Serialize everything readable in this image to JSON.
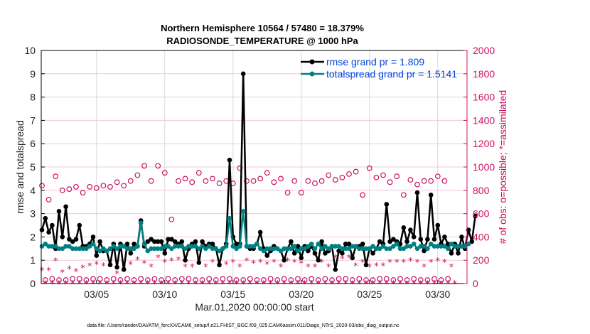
{
  "chart_data": {
    "type": "line",
    "title": "Northern Hemisphere 10564 / 57480 = 18.379%",
    "subtitle": "RADIOSONDE_TEMPERATURE @ 1000 hPa",
    "xlabel": "Mar.01,2020 00:00:00 start",
    "ylabel": "rmse and totalspread",
    "y2label": "# of obs: o=possible; *=assimilated",
    "footnote": "data file: /Users/raeder/DAI/ATM_forcXX/CAM6_setup/f.e21.FHIST_BGC.f09_025.CAM6assim.011/Diags_NTrS_2020-03/obs_diag_output.nc",
    "x_unit": "days since Mar.01,2020 00:00:00",
    "x_step_days": 0.25,
    "xlim": [
      0,
      31
    ],
    "ylim": [
      0,
      10
    ],
    "y2lim": [
      0,
      2000
    ],
    "xticks": [
      {
        "value": 4,
        "label": "03/05"
      },
      {
        "value": 9,
        "label": "03/10"
      },
      {
        "value": 14,
        "label": "03/15"
      },
      {
        "value": 19,
        "label": "03/20"
      },
      {
        "value": 24,
        "label": "03/25"
      },
      {
        "value": 29,
        "label": "03/30"
      }
    ],
    "yticks": [
      "0",
      "1",
      "2",
      "3",
      "4",
      "5",
      "6",
      "7",
      "8",
      "9",
      "10"
    ],
    "y2ticks": [
      "0",
      "200",
      "400",
      "600",
      "800",
      "1000",
      "1200",
      "1400",
      "1600",
      "1800",
      "2000"
    ],
    "grid": true,
    "legend_position": "top-right",
    "colors": {
      "rmse": "#000000",
      "totalspread": "#008080",
      "obs": "#cc1060",
      "grid_h": "#f2c8d8",
      "grid_v": "#d9d9d9",
      "legend_text": "#0044dd"
    },
    "series": [
      {
        "name": "rmse grand pr = 1.809",
        "axis": "left",
        "values": [
          2.3,
          2.8,
          2.2,
          2.5,
          1.5,
          3.1,
          2.0,
          3.3,
          1.9,
          1.8,
          1.9,
          2.5,
          1.6,
          1.6,
          1.7,
          2.0,
          1.2,
          1.8,
          1.4,
          1.4,
          0.8,
          1.7,
          0.7,
          1.7,
          0.6,
          1.7,
          1.3,
          1.7,
          1.6,
          2.7,
          1.6,
          1.8,
          1.9,
          1.8,
          1.8,
          1.8,
          1.3,
          1.9,
          1.9,
          1.8,
          1.7,
          1.8,
          1.0,
          1.5,
          1.7,
          1.8,
          0.9,
          1.8,
          1.6,
          1.7,
          1.7,
          1.5,
          0.8,
          1.5,
          1.7,
          5.3,
          2.0,
          1.7,
          1.7,
          9.0,
          1.6,
          1.5,
          1.5,
          1.7,
          2.2,
          1.5,
          1.2,
          1.4,
          1.6,
          1.5,
          1.4,
          1.0,
          1.5,
          1.8,
          1.3,
          1.6,
          1.1,
          1.6,
          1.4,
          1.6,
          1.3,
          1.0,
          1.8,
          1.3,
          1.4,
          1.6,
          0.6,
          1.4,
          1.3,
          1.7,
          1.7,
          1.1,
          1.6,
          1.6,
          1.7,
          0.8,
          1.5,
          1.3,
          1.5,
          1.8,
          1.7,
          3.4,
          1.8,
          1.9,
          1.8,
          1.7,
          2.4,
          1.8,
          2.3,
          2.0,
          3.9,
          1.9,
          1.4,
          1.9,
          3.8,
          1.9,
          2.5,
          1.7,
          2.0,
          1.7,
          1.3,
          1.7,
          1.3,
          2.0,
          1.5,
          2.3,
          1.8,
          2.9
        ],
        "gaps_note": "approximate 6-hourly readings"
      },
      {
        "name": "totalspread grand pr = 1.5141",
        "axis": "left",
        "values": [
          1.6,
          1.7,
          1.6,
          1.6,
          1.6,
          1.5,
          1.5,
          1.6,
          1.6,
          1.5,
          1.5,
          1.5,
          1.5,
          1.5,
          1.6,
          1.7,
          1.5,
          1.4,
          1.5,
          1.4,
          1.5,
          1.6,
          1.5,
          1.6,
          1.6,
          1.5,
          1.5,
          1.5,
          1.6,
          2.6,
          1.7,
          1.4,
          1.5,
          1.5,
          1.5,
          1.5,
          1.6,
          1.6,
          1.5,
          1.6,
          1.6,
          1.6,
          1.5,
          1.6,
          1.6,
          1.6,
          1.5,
          1.6,
          1.5,
          1.6,
          1.5,
          1.5,
          1.4,
          1.5,
          1.6,
          2.8,
          1.6,
          1.5,
          1.6,
          3.1,
          1.6,
          1.6,
          1.6,
          1.7,
          1.5,
          1.4,
          1.5,
          1.5,
          1.5,
          1.5,
          1.4,
          1.5,
          1.5,
          1.5,
          1.6,
          1.4,
          1.5,
          1.5,
          1.6,
          1.7,
          1.5,
          1.7,
          1.5,
          1.6,
          1.5,
          1.6,
          1.6,
          1.6,
          1.5,
          1.5,
          1.5,
          1.6,
          1.6,
          1.5,
          1.5,
          1.5,
          1.5,
          1.6,
          1.5,
          1.5,
          1.6,
          1.5,
          1.5,
          1.6,
          1.7,
          1.5,
          1.5,
          1.6,
          1.6,
          1.7,
          1.5,
          1.6,
          1.6,
          1.5,
          1.7,
          1.6,
          1.6,
          1.6,
          1.6,
          1.5,
          1.7,
          1.6,
          1.6,
          1.6,
          1.6,
          1.7
        ]
      },
      {
        "name": "possible obs",
        "axis": "right",
        "marker": "circle",
        "values": [
          840,
          30,
          720,
          40,
          920,
          30,
          800,
          30,
          810,
          40,
          830,
          40,
          780,
          30,
          830,
          40,
          820,
          40,
          840,
          30,
          830,
          40,
          870,
          30,
          840,
          40,
          880,
          30,
          930,
          40,
          1010,
          30,
          880,
          40,
          1010,
          30,
          950,
          40,
          550,
          30,
          880,
          40,
          900,
          40,
          870,
          30,
          950,
          30,
          880,
          40,
          900,
          30,
          860,
          40,
          880,
          40,
          860,
          30,
          990,
          30,
          880,
          40,
          880,
          30,
          900,
          30,
          950,
          40,
          870,
          30,
          900,
          40,
          780,
          30,
          880,
          40,
          780,
          30,
          880,
          40,
          860,
          30,
          880,
          40,
          930,
          30,
          890,
          40,
          910,
          40,
          940,
          30,
          960,
          40,
          760,
          30,
          990,
          30,
          910,
          40,
          930,
          40,
          870,
          30,
          920,
          40,
          760,
          30,
          890,
          40,
          850,
          30,
          880,
          30,
          880,
          40,
          920,
          30,
          880,
          40
        ]
      },
      {
        "name": "assimilated obs",
        "axis": "right",
        "marker": "asterisk",
        "values": [
          120,
          5,
          120,
          5,
          200,
          5,
          100,
          5,
          130,
          5,
          110,
          5,
          140,
          5,
          160,
          5,
          170,
          5,
          160,
          5,
          160,
          5,
          90,
          5,
          140,
          5,
          170,
          5,
          210,
          5,
          180,
          5,
          150,
          5,
          230,
          5,
          190,
          5,
          200,
          5,
          210,
          5,
          150,
          5,
          150,
          5,
          190,
          5,
          150,
          5,
          190,
          5,
          150,
          5,
          170,
          5,
          190,
          5,
          150,
          5,
          200,
          5,
          180,
          5,
          190,
          5,
          170,
          5,
          190,
          5,
          150,
          5,
          200,
          5,
          190,
          5,
          180,
          5,
          150,
          5,
          150,
          5,
          190,
          5,
          150,
          5,
          230,
          5,
          220,
          5,
          230,
          5,
          160,
          5,
          190,
          5,
          150,
          5,
          160,
          5,
          160,
          5,
          190,
          5,
          190,
          5,
          190,
          5,
          200,
          5,
          190,
          5,
          150,
          5,
          190,
          5,
          200,
          5,
          190,
          5,
          150,
          5
        ]
      }
    ]
  }
}
